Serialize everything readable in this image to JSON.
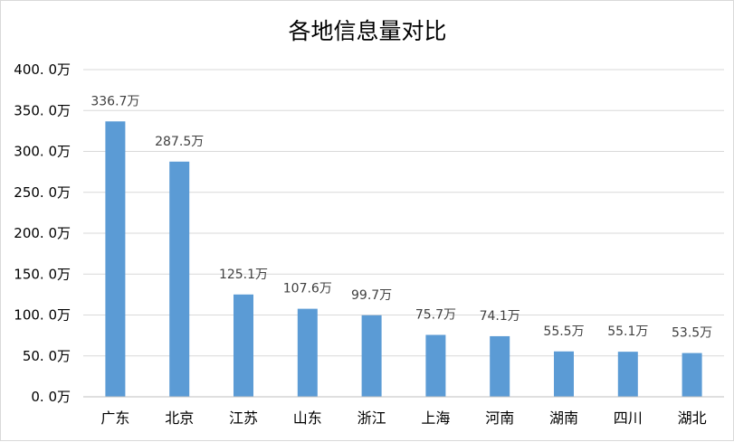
{
  "chart_data": {
    "type": "bar",
    "title": "各地信息量对比",
    "xlabel": "",
    "ylabel": "",
    "categories": [
      "广东",
      "北京",
      "江苏",
      "山东",
      "浙江",
      "上海",
      "河南",
      "湖南",
      "四川",
      "湖北"
    ],
    "values": [
      336.7,
      287.5,
      125.1,
      107.6,
      99.7,
      75.7,
      74.1,
      55.5,
      55.1,
      53.5
    ],
    "data_labels": [
      "336.7万",
      "287.5万",
      "125.1万",
      "107.6万",
      "99.7万",
      "75.7万",
      "74.1万",
      "55.5万",
      "55.1万",
      "53.5万"
    ],
    "y_ticks": [
      0,
      50,
      100,
      150,
      200,
      250,
      300,
      350,
      400
    ],
    "y_tick_labels": [
      "0. 0万",
      "50. 0万",
      "100. 0万",
      "150. 0万",
      "200. 0万",
      "250. 0万",
      "300. 0万",
      "350. 0万",
      "400. 0万"
    ],
    "ylim": [
      0,
      400
    ],
    "grid": true,
    "legend": "none",
    "colors": {
      "bar": "#5b9bd5",
      "grid": "#d9d9d9",
      "axis": "#bfbfbf",
      "border": "#d9d9d9"
    }
  }
}
